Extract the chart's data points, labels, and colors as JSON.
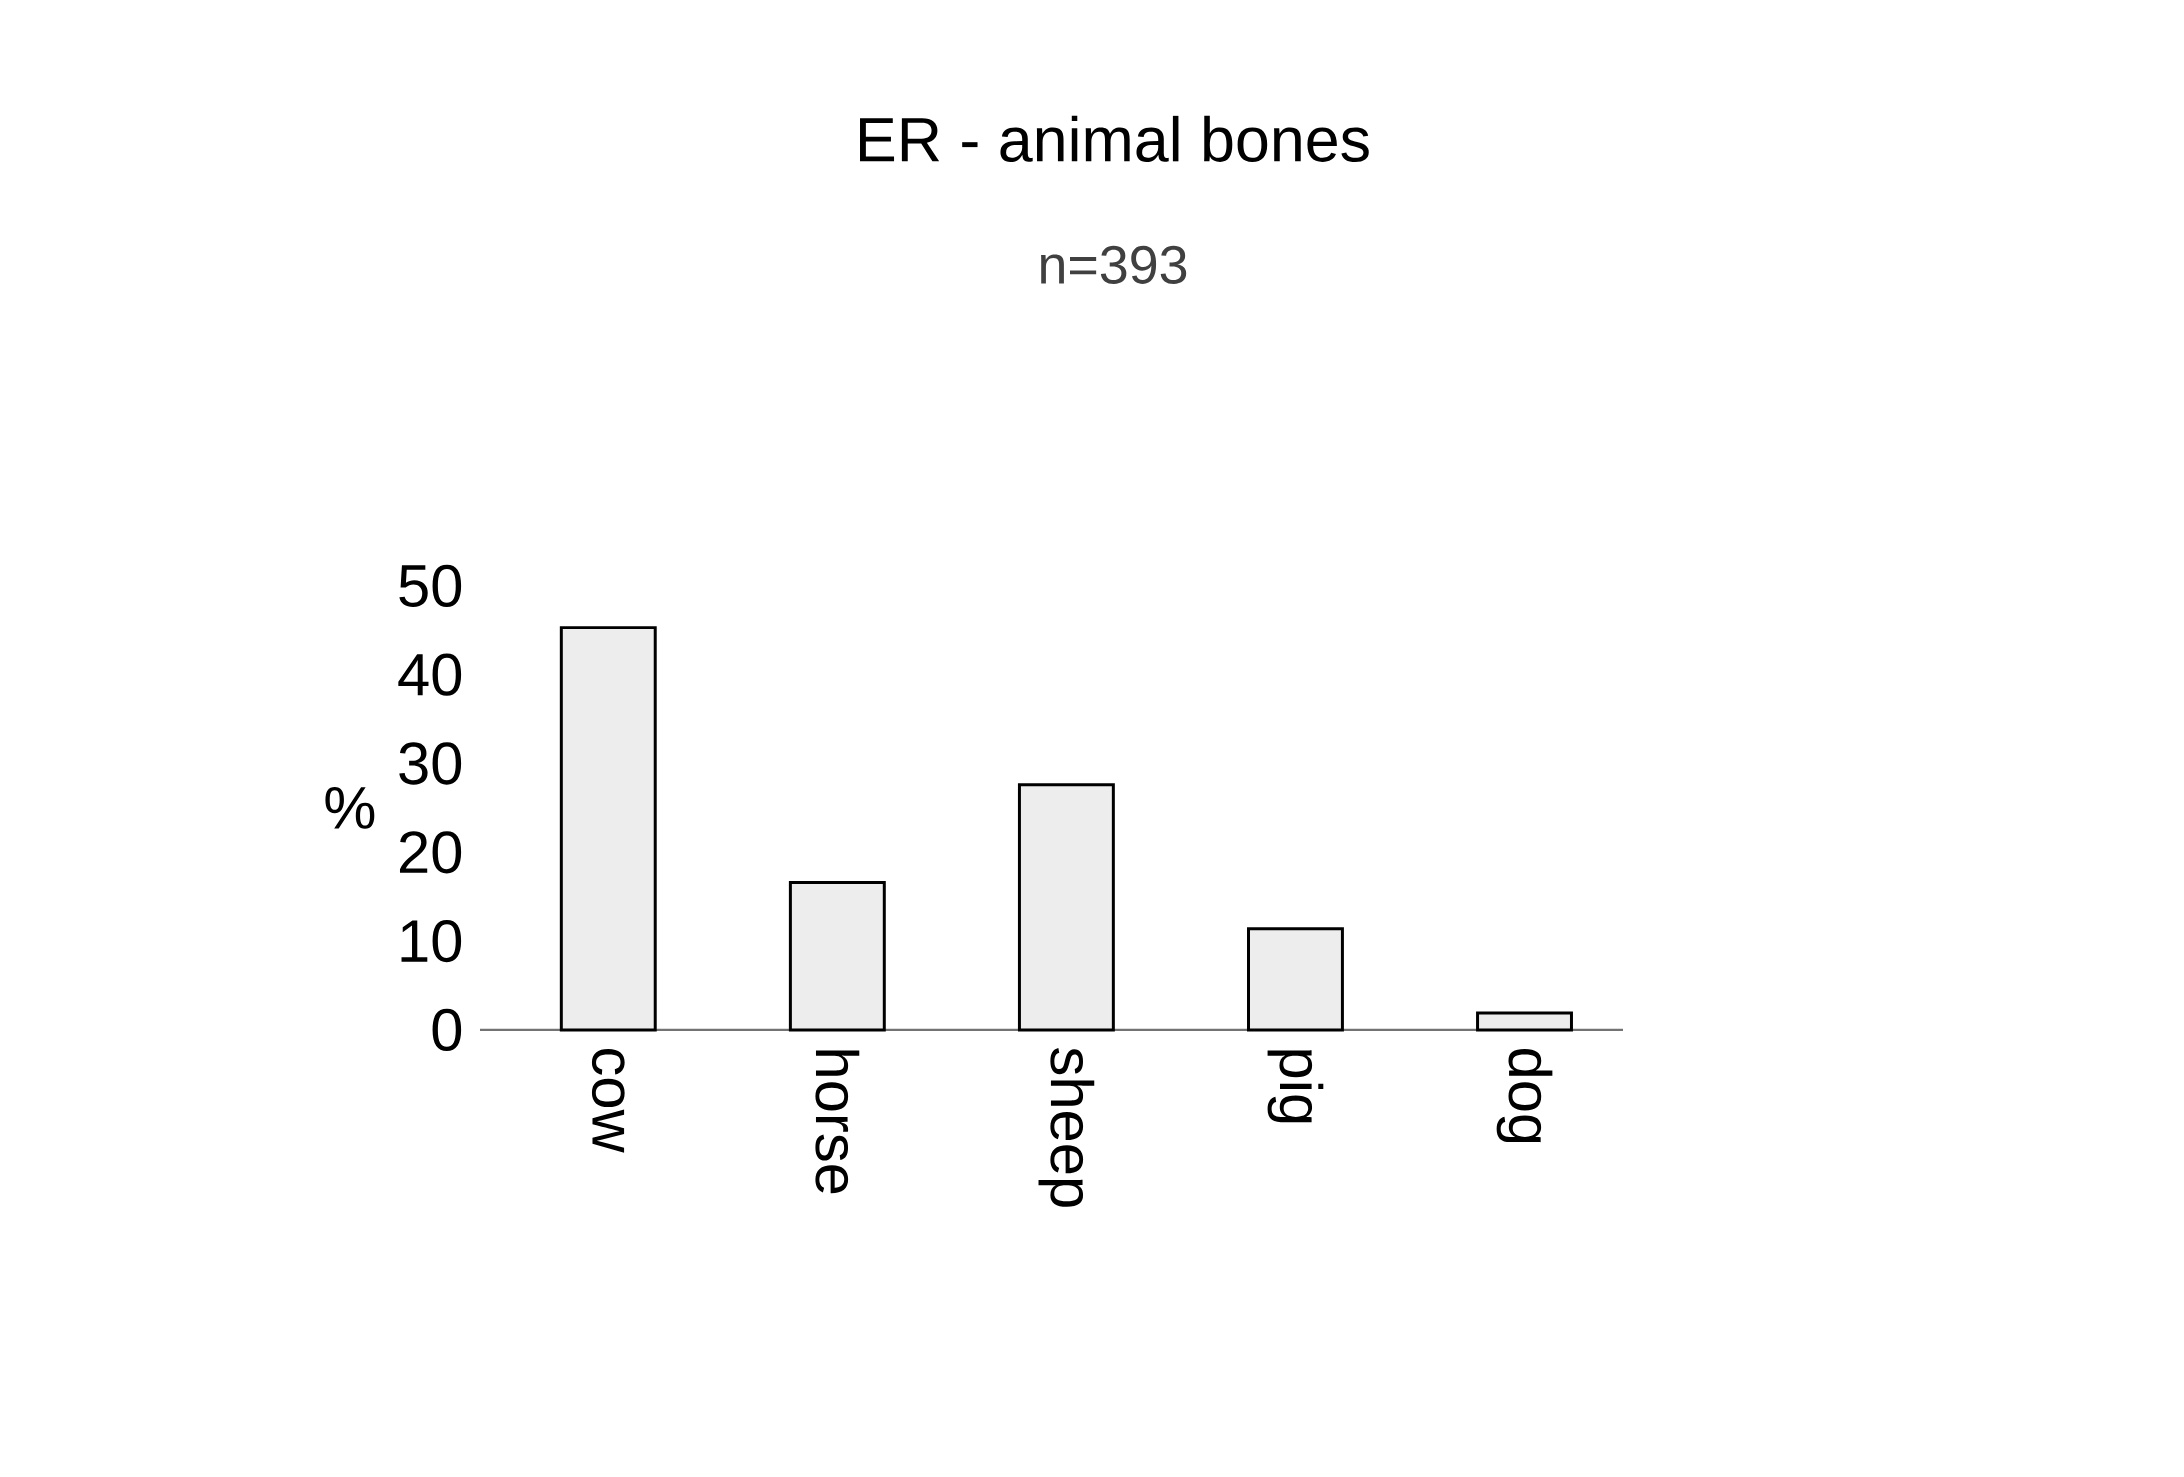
{
  "chart_data": {
    "type": "bar",
    "title": "ER - animal bones",
    "subtitle": "n=393",
    "ylabel": "%",
    "categories": [
      "cow",
      "horse",
      "sheep",
      "pig",
      "dog"
    ],
    "values": [
      45.3,
      16.6,
      27.6,
      11.4,
      1.9
    ],
    "color": "#ededed",
    "ylim": [
      0,
      50
    ],
    "yticks": [
      0,
      10,
      20,
      30,
      40,
      50
    ]
  }
}
